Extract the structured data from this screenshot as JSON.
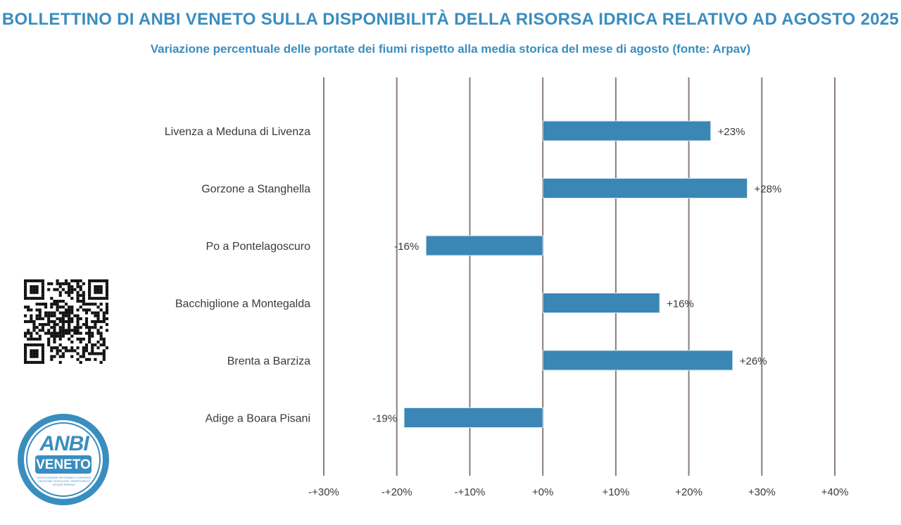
{
  "header": {
    "title": "BOLLETTINO DI ANBI VENETO SULLA DISPONIBILITÀ DELLA RISORSA IDRICA RELATIVO AD AGOSTO 2025",
    "subtitle": "Variazione percentuale delle portate dei fiumi rispetto alla media storica del mese di agosto (fonte: Arpav)"
  },
  "logo": {
    "text_anbi": "ANBI",
    "text_veneto": "VENETO",
    "small_text": "ASSOCIAZIONE REGIONALE CONSORZI GESTIONE TUTELA DEL TERRITORIO E ACQUE IRRIGUE"
  },
  "colors": {
    "accent": "#3a8dbf",
    "bar": "#3a86b5",
    "grid": "#8a7d78",
    "text": "#3a3a3a"
  },
  "chart_data": {
    "type": "bar",
    "orientation": "horizontal",
    "title": "Variazione percentuale delle portate dei fiumi rispetto alla media storica del mese di agosto (fonte: Arpav)",
    "categories": [
      "Livenza a Meduna di Livenza",
      "Gorzone a Stanghella",
      "Po a Pontelagoscuro",
      "Bacchiglione a Montegalda",
      "Brenta a Barziza",
      "Adige a Boara Pisani"
    ],
    "values": [
      23,
      28,
      -16,
      16,
      26,
      -19
    ],
    "value_labels": [
      "+23%",
      "+28%",
      "-16%",
      "+16%",
      "+26%",
      "-19%"
    ],
    "xlim": [
      -30,
      40
    ],
    "x_ticks": [
      -30,
      -20,
      -10,
      0,
      10,
      20,
      30,
      40
    ],
    "x_tick_labels": [
      "-+30%",
      "-+20%",
      "-+10%",
      "+0%",
      "+10%",
      "+20%",
      "+30%",
      "+40%"
    ],
    "grid": true,
    "unit": "%"
  }
}
